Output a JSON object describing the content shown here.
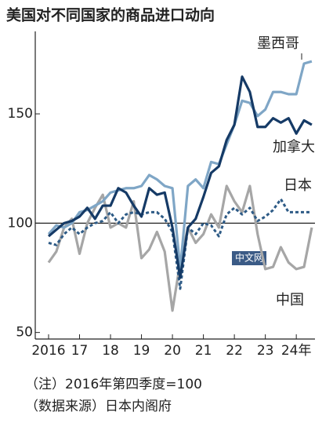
{
  "chart_data": {
    "type": "line",
    "title": "美国对不同国家的商品进口动向",
    "categories": [
      "2016",
      null,
      null,
      null,
      "17",
      null,
      null,
      null,
      "18",
      null,
      null,
      null,
      "19",
      null,
      null,
      null,
      "20",
      null,
      null,
      null,
      "21",
      null,
      null,
      null,
      "22",
      null,
      null,
      null,
      "23",
      null,
      null,
      null,
      "24年",
      null,
      null
    ],
    "series": [
      {
        "name": "墨西哥",
        "color": "#7fa6c6",
        "dash": false,
        "values": [
          95,
          99,
          98,
          100,
          105,
          106,
          108,
          110,
          114,
          115,
          116,
          116,
          117,
          122,
          120,
          117,
          116,
          79,
          117,
          120,
          116,
          128,
          127,
          136,
          145,
          156,
          155,
          149,
          152,
          160,
          160,
          159,
          159,
          173,
          174
        ]
      },
      {
        "name": "加拿大",
        "color": "#153a66",
        "dash": false,
        "values": [
          94,
          97,
          100,
          101,
          103,
          107,
          102,
          108,
          108,
          116,
          114,
          108,
          103,
          116,
          113,
          114,
          98,
          75,
          98,
          102,
          112,
          123,
          126,
          138,
          145,
          167,
          160,
          144,
          144,
          148,
          146,
          148,
          141,
          147,
          145
        ]
      },
      {
        "name": "日本",
        "color": "#2e5b86",
        "dash": true,
        "values": [
          91,
          90,
          95,
          98,
          95,
          98,
          100,
          101,
          105,
          100,
          104,
          105,
          104,
          105,
          105,
          102,
          96,
          70,
          98,
          95,
          100,
          99,
          94,
          104,
          107,
          104,
          107,
          101,
          103,
          106,
          111,
          105,
          105,
          105,
          105
        ]
      },
      {
        "name": "中国",
        "color": "#a6a6a6",
        "dash": false,
        "values": [
          82,
          87,
          98,
          102,
          86,
          100,
          107,
          113,
          98,
          100,
          98,
          110,
          84,
          88,
          96,
          87,
          60,
          82,
          98,
          91,
          95,
          104,
          98,
          117,
          110,
          105,
          117,
          95,
          79,
          80,
          89,
          82,
          79,
          80,
          98
        ]
      }
    ],
    "ylim": [
      47,
      187
    ],
    "yticks": [
      50,
      100,
      150
    ],
    "hline": 100,
    "notes": [
      "（注）2016年第四季度=100",
      "（数据来源）日本内阁府"
    ],
    "watermark": "中文网"
  }
}
